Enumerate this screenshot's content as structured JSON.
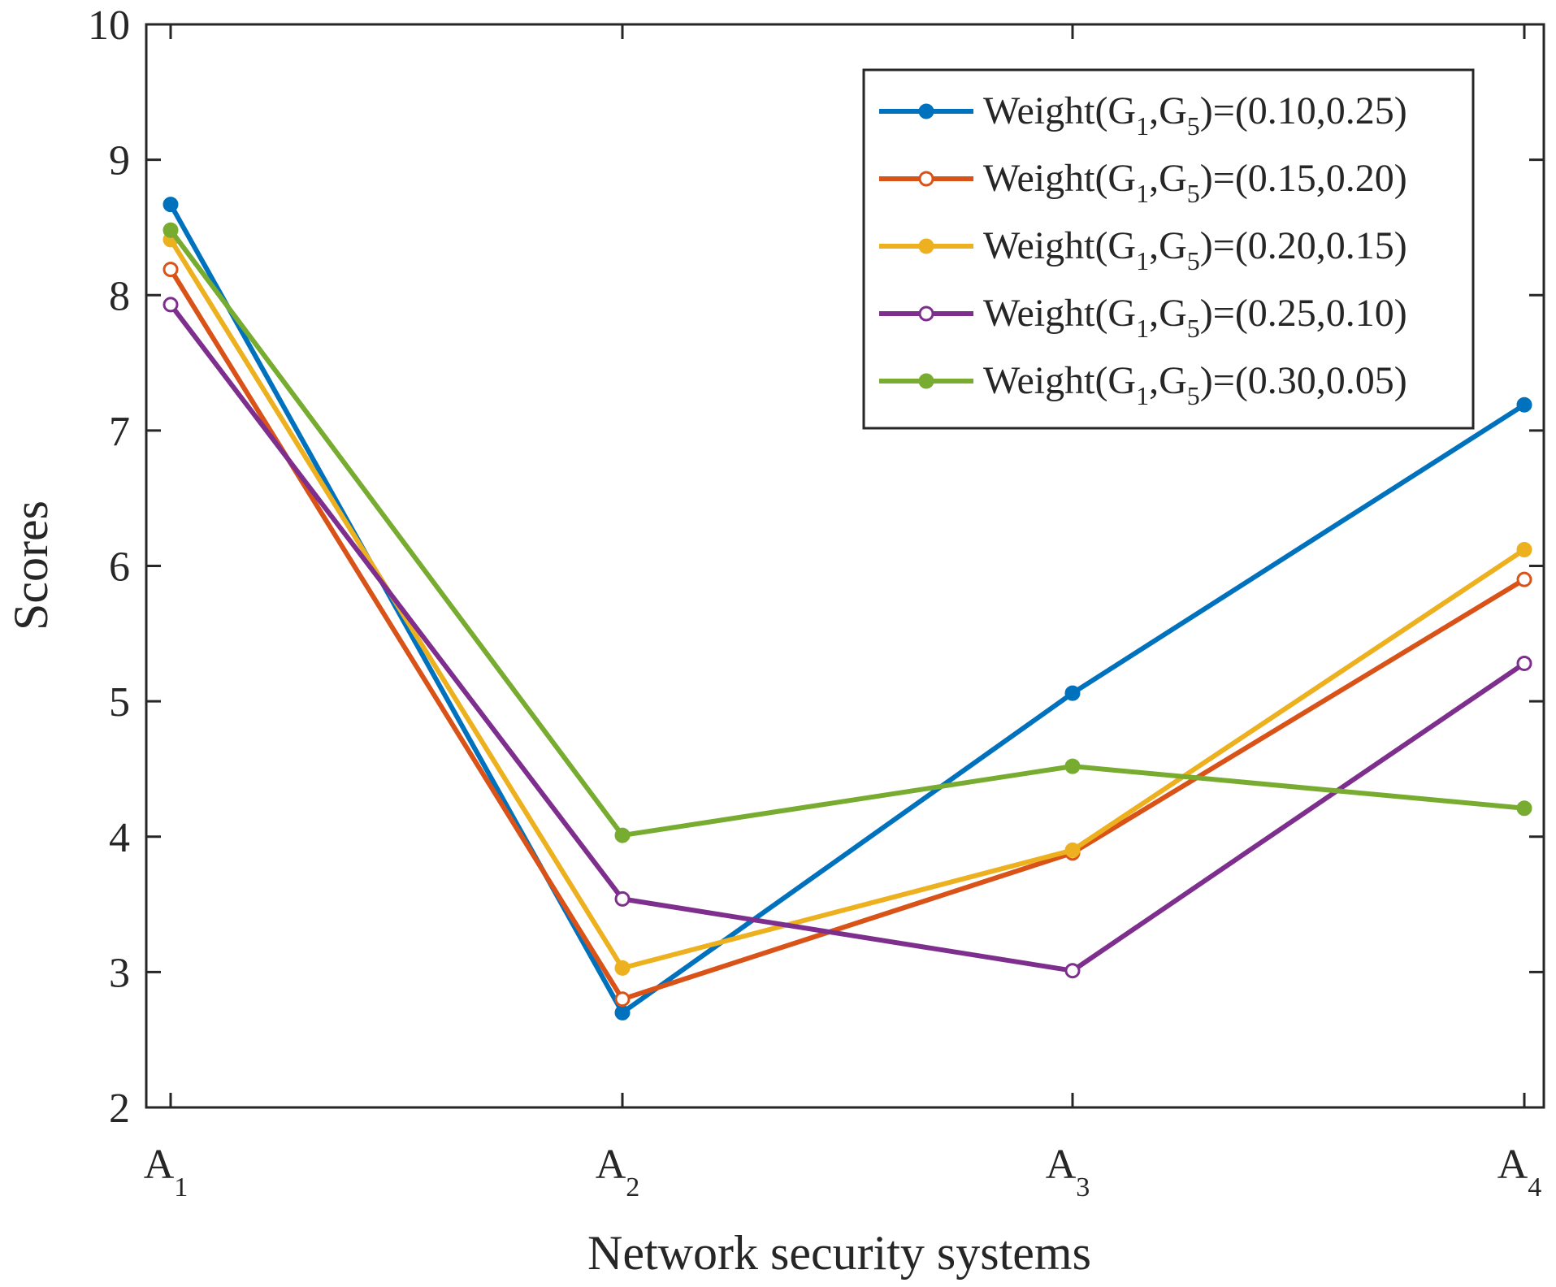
{
  "chart_data": {
    "type": "line",
    "title": "",
    "xlabel": "Network security systems",
    "ylabel": "Scores",
    "ylim": [
      2,
      10
    ],
    "yticks": [
      "2",
      "3",
      "4",
      "5",
      "6",
      "7",
      "8",
      "9",
      "10"
    ],
    "categories": [
      {
        "main": "A",
        "sub": "1"
      },
      {
        "main": "A",
        "sub": "2"
      },
      {
        "main": "A",
        "sub": "3"
      },
      {
        "main": "A",
        "sub": "4"
      }
    ],
    "legend_position": "top-right",
    "series": [
      {
        "name": "Weight(G1,G5)=(0.10,0.25)",
        "label": {
          "pre": "Weight(G",
          "s1": "1",
          "mid": ",G",
          "s2": "5",
          "post": ")=(0.10,0.25)"
        },
        "color": "#0072BD",
        "values": [
          8.67,
          2.7,
          5.06,
          7.19
        ]
      },
      {
        "name": "Weight(G1,G5)=(0.15,0.20)",
        "label": {
          "pre": "Weight(G",
          "s1": "1",
          "mid": ",G",
          "s2": "5",
          "post": ")=(0.15,0.20)"
        },
        "color": "#D95319",
        "values": [
          8.19,
          2.8,
          3.88,
          5.9
        ]
      },
      {
        "name": "Weight(G1,G5)=(0.20,0.15)",
        "label": {
          "pre": "Weight(G",
          "s1": "1",
          "mid": ",G",
          "s2": "5",
          "post": ")=(0.20,0.15)"
        },
        "color": "#EDB120",
        "values": [
          8.41,
          3.03,
          3.9,
          6.12
        ]
      },
      {
        "name": "Weight(G1,G5)=(0.25,0.10)",
        "label": {
          "pre": "Weight(G",
          "s1": "1",
          "mid": ",G",
          "s2": "5",
          "post": ")=(0.25,0.10)"
        },
        "color": "#7E2F8E",
        "values": [
          7.93,
          3.54,
          3.01,
          5.28
        ]
      },
      {
        "name": "Weight(G1,G5)=(0.30,0.05)",
        "label": {
          "pre": "Weight(G",
          "s1": "1",
          "mid": ",G",
          "s2": "5",
          "post": ")=(0.30,0.05)"
        },
        "color": "#77AC30",
        "values": [
          8.48,
          4.01,
          4.52,
          4.21
        ]
      }
    ]
  }
}
